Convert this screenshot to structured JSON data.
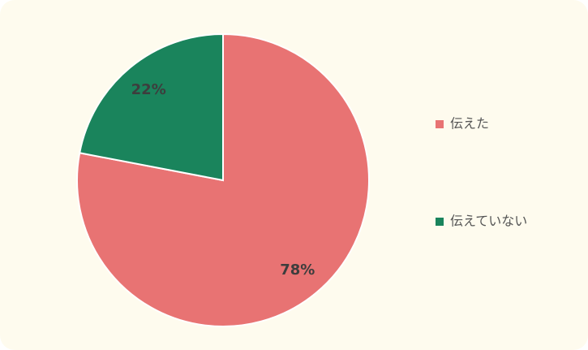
{
  "chart_data": {
    "type": "pie",
    "categories": [
      "伝えた",
      "伝えていない"
    ],
    "values": [
      78,
      22
    ],
    "value_labels": [
      "78%",
      "22%"
    ],
    "colors": [
      "#e87373",
      "#1a845c"
    ],
    "legend": "right"
  }
}
